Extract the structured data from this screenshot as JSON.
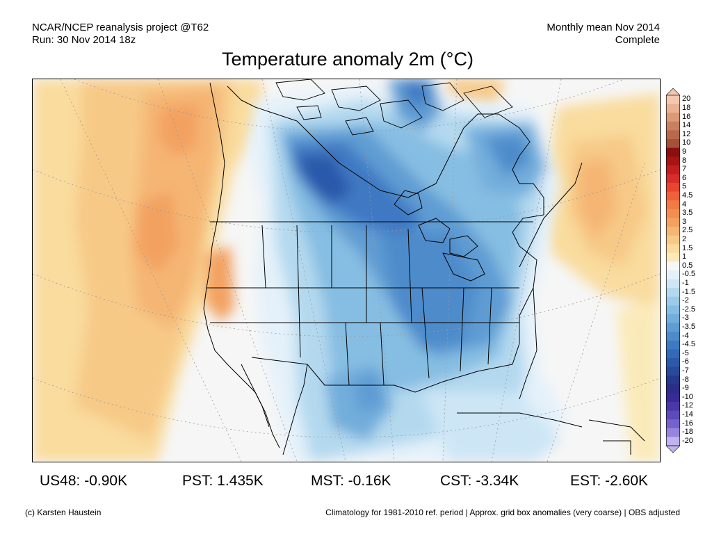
{
  "header": {
    "left_line1": "NCAR/NCEP reanalysis project @T62",
    "left_line2": "Run: 30 Nov 2014 18z",
    "right_line1": "Monthly mean Nov 2014",
    "right_line2": "Complete",
    "title": "Temperature anomaly 2m (°C)"
  },
  "colorbar": {
    "labels": [
      "20",
      "18",
      "16",
      "14",
      "12",
      "10",
      "9",
      "8",
      "7",
      "6",
      "5",
      "4.5",
      "4",
      "3.5",
      "3",
      "2.5",
      "2",
      "1.5",
      "1",
      "0.5",
      "-0.5",
      "-1",
      "-1.5",
      "-2",
      "-2.5",
      "-3",
      "-3.5",
      "-4",
      "-4.5",
      "-5",
      "-6",
      "-7",
      "-8",
      "-9",
      "-10",
      "-12",
      "-14",
      "-16",
      "-18",
      "-20"
    ],
    "colors": [
      "#f3c7b0",
      "#eab193",
      "#dc9a78",
      "#c98060",
      "#b9684c",
      "#a55038",
      "#8b0f0f",
      "#a81414",
      "#c41f1f",
      "#d92d2d",
      "#e8452f",
      "#f0613a",
      "#f27a44",
      "#f28e4f",
      "#f3a160",
      "#f5b573",
      "#f7c987",
      "#f9dc9e",
      "#fbeab9",
      "#f6f6f6",
      "#e4f1fa",
      "#cde6f5",
      "#b4d9ef",
      "#9ccbe9",
      "#86bde2",
      "#72addb",
      "#5f9cd3",
      "#4e8bcb",
      "#3f79c3",
      "#3468b8",
      "#2c59aa",
      "#284a9c",
      "#26398c",
      "#2d2c86",
      "#3a2a95",
      "#4a37a8",
      "#5c4bba",
      "#7463cc",
      "#9684dd",
      "#c0b4ee"
    ]
  },
  "stats": {
    "us48": "US48: -0.90K",
    "pst": "PST: 1.435K",
    "mst": "MST: -0.16K",
    "cst": "CST: -3.34K",
    "est": "EST: -2.60K"
  },
  "footer": {
    "copyright": "(c) Karsten Haustein",
    "note": "Climatology for 1981-2010 ref. period | Approx. grid box anomalies (very coarse) | OBS adjusted"
  }
}
